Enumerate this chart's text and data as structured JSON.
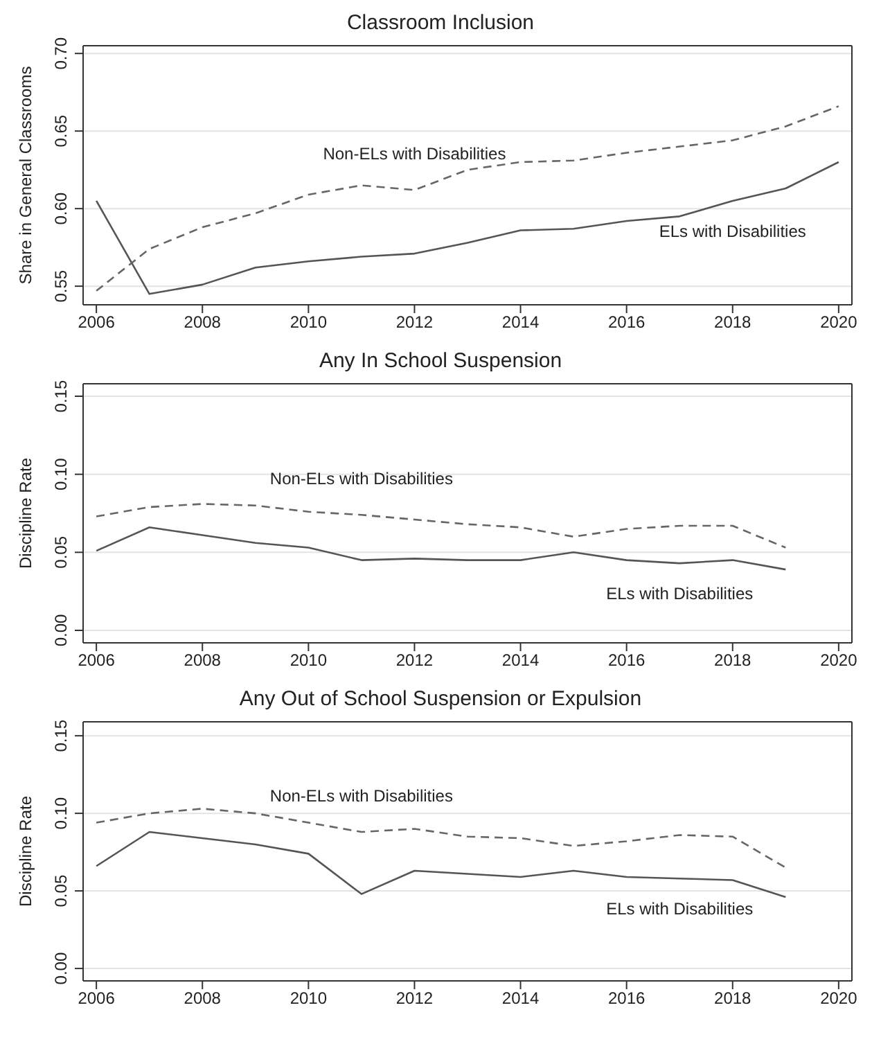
{
  "chart_data": [
    {
      "type": "line",
      "title": "Classroom Inclusion",
      "ylabel": "Share in General Classrooms",
      "x": [
        2006,
        2007,
        2008,
        2009,
        2010,
        2011,
        2012,
        2013,
        2014,
        2015,
        2016,
        2017,
        2018,
        2019,
        2020
      ],
      "series": [
        {
          "name": "ELs with Disabilities",
          "color": "#555555",
          "line_style": "solid",
          "values": [
            0.605,
            0.545,
            0.551,
            0.562,
            0.566,
            0.569,
            0.571,
            0.578,
            0.586,
            0.587,
            0.592,
            0.595,
            0.605,
            0.613,
            0.63
          ]
        },
        {
          "name": "Non-ELs with Disabilities",
          "color": "#666666",
          "line_style": "dashed",
          "values": [
            0.547,
            0.574,
            0.588,
            0.597,
            0.609,
            0.615,
            0.612,
            0.625,
            0.63,
            0.631,
            0.636,
            0.64,
            0.644,
            0.653,
            0.666
          ]
        }
      ],
      "xlim": [
        2005.75,
        2020.25
      ],
      "xticks": [
        2006,
        2008,
        2010,
        2012,
        2014,
        2016,
        2018,
        2020
      ],
      "ylim": [
        0.538,
        0.705
      ],
      "yticks": [
        {
          "value": 0.55,
          "label": "0.55"
        },
        {
          "value": 0.6,
          "label": "0.60"
        },
        {
          "value": 0.65,
          "label": "0.65"
        },
        {
          "value": 0.7,
          "label": "0.70"
        }
      ],
      "grid": "y",
      "legend": false,
      "marker": "none"
    },
    {
      "type": "line",
      "title": "Any In School Suspension",
      "ylabel": "Discipline Rate",
      "x": [
        2006,
        2007,
        2008,
        2009,
        2010,
        2011,
        2012,
        2013,
        2014,
        2015,
        2016,
        2017,
        2018,
        2019
      ],
      "series": [
        {
          "name": "ELs with Disabilities",
          "color": "#555555",
          "line_style": "solid",
          "values": [
            0.051,
            0.066,
            0.061,
            0.056,
            0.053,
            0.045,
            0.046,
            0.045,
            0.045,
            0.05,
            0.045,
            0.043,
            0.045,
            0.039
          ]
        },
        {
          "name": "Non-ELs with Disabilities",
          "color": "#666666",
          "line_style": "dashed",
          "values": [
            0.073,
            0.079,
            0.081,
            0.08,
            0.076,
            0.074,
            0.071,
            0.068,
            0.066,
            0.06,
            0.065,
            0.067,
            0.067,
            0.053
          ]
        }
      ],
      "xlim": [
        2005.75,
        2020.25
      ],
      "xticks": [
        2006,
        2008,
        2010,
        2012,
        2014,
        2016,
        2018,
        2020
      ],
      "ylim": [
        -0.008,
        0.158
      ],
      "yticks": [
        {
          "value": 0,
          "label": "0.00"
        },
        {
          "value": 0.05,
          "label": "0.05"
        },
        {
          "value": 0.1,
          "label": "0.10"
        },
        {
          "value": 0.15,
          "label": "0.15"
        }
      ],
      "grid": "y",
      "legend": false,
      "marker": "none"
    },
    {
      "type": "line",
      "title": "Any Out of School Suspension or Expulsion",
      "ylabel": "Discipline Rate",
      "x": [
        2006,
        2007,
        2008,
        2009,
        2010,
        2011,
        2012,
        2013,
        2014,
        2015,
        2016,
        2017,
        2018,
        2019
      ],
      "series": [
        {
          "name": "ELs with Disabilities",
          "color": "#555555",
          "line_style": "solid",
          "values": [
            0.066,
            0.088,
            0.084,
            0.08,
            0.074,
            0.048,
            0.063,
            0.061,
            0.059,
            0.063,
            0.059,
            0.058,
            0.057,
            0.046
          ]
        },
        {
          "name": "Non-ELs with Disabilities",
          "color": "#666666",
          "line_style": "dashed",
          "values": [
            0.094,
            0.1,
            0.103,
            0.1,
            0.094,
            0.088,
            0.09,
            0.085,
            0.084,
            0.079,
            0.082,
            0.086,
            0.085,
            0.065
          ]
        }
      ],
      "xlim": [
        2005.75,
        2020.25
      ],
      "xticks": [
        2006,
        2008,
        2010,
        2012,
        2014,
        2016,
        2018,
        2020
      ],
      "ylim": [
        -0.008,
        0.159
      ],
      "yticks": [
        {
          "value": 0,
          "label": "0.00"
        },
        {
          "value": 0.05,
          "label": "0.05"
        },
        {
          "value": 0.1,
          "label": "0.10"
        },
        {
          "value": 0.15,
          "label": "0.15"
        }
      ],
      "grid": "y",
      "legend": false,
      "marker": "none"
    }
  ]
}
